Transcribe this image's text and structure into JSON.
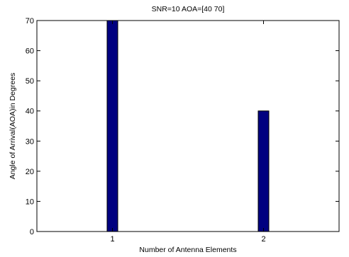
{
  "chart_data": {
    "type": "bar",
    "title": "SNR=10 AOA=[40 70]",
    "xlabel": "Number of Antenna Elements",
    "ylabel": "Angle of Arrival(AOA)in Degrees",
    "categories": [
      "1",
      "2"
    ],
    "values": [
      70,
      40
    ],
    "xlim": [
      0.5,
      2.5
    ],
    "ylim": [
      0,
      70
    ],
    "yticks": [
      0,
      10,
      20,
      30,
      40,
      50,
      60,
      70
    ],
    "grid": false,
    "bar_color": "#000080",
    "bar_edge_color": "#000000"
  }
}
